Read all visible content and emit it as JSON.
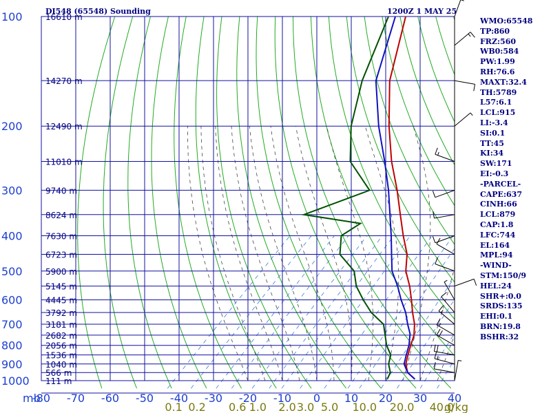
{
  "header": {
    "station": "DI548 (65548) Sounding",
    "time": "1200Z  1 MAY 25"
  },
  "indices": [
    "WMO:65548",
    "TP:860",
    "FRZ:560",
    "WB0:584",
    "PW:1.99",
    "RH:76.6",
    "MAXT:32.4",
    "TH:5789",
    "L57:6.1",
    "LCL:915",
    "LI:-3.4",
    "SI:0.1",
    "TT:45",
    "KI:34",
    "SW:171",
    "EI:-0.3",
    "-PARCEL-",
    "CAPE:637",
    "CINH:66",
    "LCL:879",
    "CAP:1.8",
    "LFC:744",
    "EL:164",
    "MPL:94",
    "-WIND-",
    "STM:150/9",
    "HEL:24",
    "SHR+:0.0",
    "SRDS:135",
    "EHI:0.1",
    "BRN:19.8",
    "BSHR:32"
  ],
  "colors": {
    "grid": "#1010a0",
    "dry_adiabat": "#22aa22",
    "moist_adiabat": "#444444",
    "mixing_ratio": "#3a7adf",
    "temperature": "#c00000",
    "dewpoint": "#005000",
    "parcel": "#1010c0",
    "wind": "#000000"
  },
  "chart_data": {
    "type": "line",
    "title": "DI548 (65548) Sounding",
    "skew_t": true,
    "x_label": "mb",
    "x_ticks": [
      "-80",
      "-70",
      "-60",
      "-50",
      "-40",
      "-30",
      "-20",
      "-10",
      "0",
      "10",
      "20",
      "30",
      "40"
    ],
    "xlim": [
      -80,
      50
    ],
    "y_log_pressure": true,
    "ylim": [
      1000,
      100
    ],
    "y_ticks": [
      "100",
      "200",
      "300",
      "400",
      "500",
      "600",
      "700",
      "800",
      "900",
      "1000"
    ],
    "height_labels": [
      {
        "p": 100,
        "label": "16610 m"
      },
      {
        "p": 150,
        "label": "14270 m"
      },
      {
        "p": 200,
        "label": "12490 m"
      },
      {
        "p": 250,
        "label": "11010 m"
      },
      {
        "p": 300,
        "label": "9740 m"
      },
      {
        "p": 350,
        "label": "8624 m"
      },
      {
        "p": 400,
        "label": "7630 m"
      },
      {
        "p": 450,
        "label": "6723 m"
      },
      {
        "p": 500,
        "label": "5900 m"
      },
      {
        "p": 550,
        "label": "5145 m"
      },
      {
        "p": 600,
        "label": "4445 m"
      },
      {
        "p": 650,
        "label": "3792 m"
      },
      {
        "p": 700,
        "label": "3181 m"
      },
      {
        "p": 750,
        "label": "2682 m"
      },
      {
        "p": 800,
        "label": "2056 m"
      },
      {
        "p": 850,
        "label": "1536 m"
      },
      {
        "p": 900,
        "label": "1040 m"
      },
      {
        "p": 950,
        "label": "566 m"
      },
      {
        "p": 1000,
        "label": "111 m"
      }
    ],
    "mixing_ratio_labels": [
      {
        "w": 0.1,
        "label": "0.1"
      },
      {
        "w": 0.2,
        "label": "0.2"
      },
      {
        "w": 0.6,
        "label": "0.6"
      },
      {
        "w": 1.0,
        "label": "1.0"
      },
      {
        "w": 2.0,
        "label": "2.0"
      },
      {
        "w": 3.0,
        "label": "3.0"
      },
      {
        "w": 5.0,
        "label": "5.0"
      },
      {
        "w": 10.0,
        "label": "10.0"
      },
      {
        "w": 20.0,
        "label": "20.0"
      },
      {
        "w": 40.0,
        "label": "40.0"
      }
    ],
    "mixing_ratio_unit": "g/kg",
    "series": [
      {
        "key": "temperature",
        "points": [
          [
            990,
            28
          ],
          [
            950,
            24
          ],
          [
            900,
            21
          ],
          [
            850,
            19
          ],
          [
            800,
            17
          ],
          [
            750,
            15
          ],
          [
            700,
            12
          ],
          [
            650,
            8
          ],
          [
            600,
            4
          ],
          [
            550,
            -0.5
          ],
          [
            500,
            -6
          ],
          [
            450,
            -10.5
          ],
          [
            400,
            -17
          ],
          [
            350,
            -24
          ],
          [
            300,
            -32
          ],
          [
            250,
            -42
          ],
          [
            200,
            -53
          ],
          [
            150,
            -66
          ],
          [
            100,
            -80
          ]
        ]
      },
      {
        "key": "dewpoint",
        "points": [
          [
            990,
            20
          ],
          [
            950,
            19
          ],
          [
            900,
            16
          ],
          [
            850,
            14
          ],
          [
            800,
            10
          ],
          [
            700,
            3
          ],
          [
            650,
            -4
          ],
          [
            600,
            -10
          ],
          [
            550,
            -16
          ],
          [
            500,
            -21
          ],
          [
            450,
            -30
          ],
          [
            400,
            -35
          ],
          [
            370,
            -33
          ],
          [
            350,
            -52
          ],
          [
            300,
            -40
          ],
          [
            250,
            -54
          ],
          [
            200,
            -64
          ],
          [
            150,
            -74
          ],
          [
            100,
            -85
          ]
        ]
      },
      {
        "key": "parcel",
        "points": [
          [
            990,
            28
          ],
          [
            950,
            24
          ],
          [
            900,
            20.5
          ],
          [
            850,
            18.5
          ],
          [
            800,
            16.5
          ],
          [
            744,
            13.5
          ],
          [
            700,
            10
          ],
          [
            650,
            6
          ],
          [
            600,
            1
          ],
          [
            550,
            -4
          ],
          [
            500,
            -10
          ],
          [
            450,
            -15
          ],
          [
            400,
            -20.5
          ],
          [
            350,
            -27
          ],
          [
            300,
            -34.5
          ],
          [
            250,
            -44
          ],
          [
            200,
            -56
          ],
          [
            150,
            -70
          ],
          [
            100,
            -83
          ]
        ]
      }
    ],
    "wind_barbs": [
      {
        "p": 1000,
        "dir": 10,
        "spd": 5
      },
      {
        "p": 950,
        "dir": 280,
        "spd": 10
      },
      {
        "p": 900,
        "dir": 285,
        "spd": 15
      },
      {
        "p": 850,
        "dir": 280,
        "spd": 20
      },
      {
        "p": 800,
        "dir": 300,
        "spd": 20
      },
      {
        "p": 750,
        "dir": 300,
        "spd": 15
      },
      {
        "p": 700,
        "dir": 310,
        "spd": 15
      },
      {
        "p": 650,
        "dir": 320,
        "spd": 10
      },
      {
        "p": 600,
        "dir": 330,
        "spd": 5
      },
      {
        "p": 550,
        "dir": 70,
        "spd": 10
      },
      {
        "p": 500,
        "dir": 290,
        "spd": 10
      },
      {
        "p": 450,
        "dir": 300,
        "spd": 10
      },
      {
        "p": 400,
        "dir": 250,
        "spd": 10
      },
      {
        "p": 350,
        "dir": 260,
        "spd": 10
      },
      {
        "p": 300,
        "dir": 250,
        "spd": 10
      },
      {
        "p": 250,
        "dir": 290,
        "spd": 15
      },
      {
        "p": 200,
        "dir": 50,
        "spd": 5
      },
      {
        "p": 150,
        "dir": 100,
        "spd": 10
      },
      {
        "p": 120,
        "dir": 50,
        "spd": 15
      },
      {
        "p": 100,
        "dir": 20,
        "spd": 15
      }
    ]
  }
}
